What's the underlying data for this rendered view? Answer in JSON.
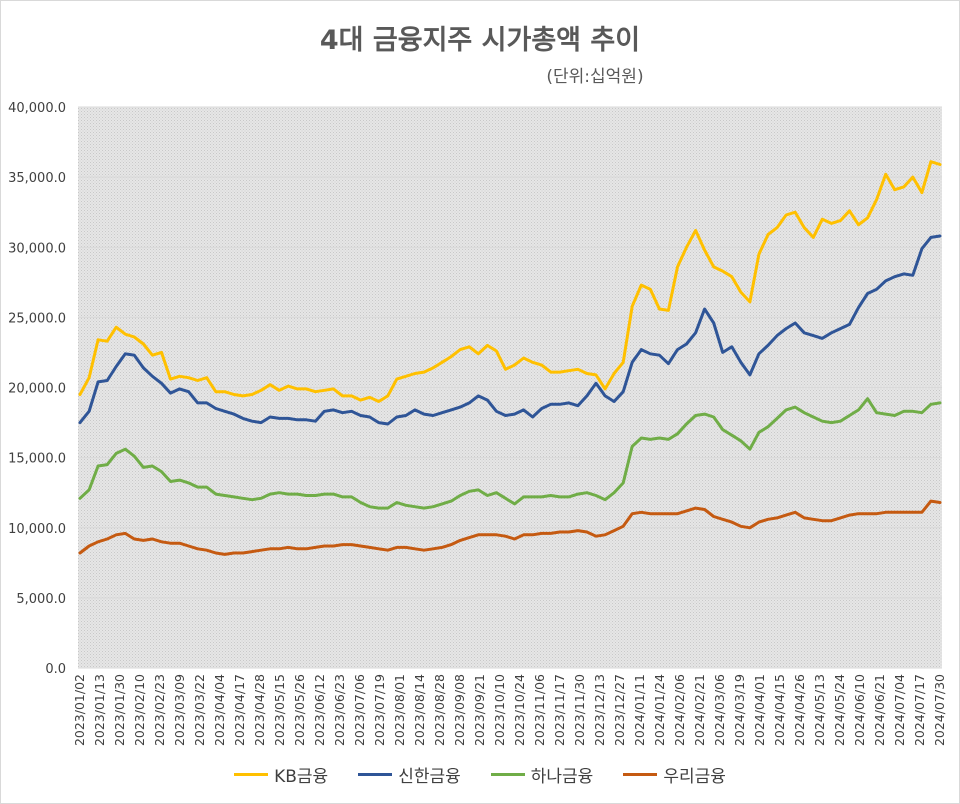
{
  "chart_data": {
    "type": "line",
    "title": "4대 금융지주 시가총액 추이",
    "unit_label": "(단위:십억원)",
    "xlabel": "",
    "ylabel": "",
    "ylim": [
      0,
      40000
    ],
    "yticks": [
      0,
      5000,
      10000,
      15000,
      20000,
      25000,
      30000,
      35000,
      40000
    ],
    "ytick_labels": [
      "0.0",
      "5,000.0",
      "10,000.0",
      "15,000.0",
      "20,000.0",
      "25,000.0",
      "30,000.0",
      "35,000.0",
      "40,000.0"
    ],
    "x_tick_labels": [
      "2023/01/02",
      "2023/01/13",
      "2023/01/30",
      "2023/02/10",
      "2023/02/23",
      "2023/03/09",
      "2023/03/22",
      "2023/04/04",
      "2023/04/17",
      "2023/04/28",
      "2023/05/15",
      "2023/05/26",
      "2023/06/12",
      "2023/06/23",
      "2023/07/06",
      "2023/07/19",
      "2023/08/01",
      "2023/08/14",
      "2023/08/28",
      "2023/09/08",
      "2023/09/21",
      "2023/10/10",
      "2023/10/24",
      "2023/11/06",
      "2023/11/17",
      "2023/11/30",
      "2023/12/13",
      "2023/12/27",
      "2024/01/11",
      "2024/01/24",
      "2024/02/06",
      "2024/02/21",
      "2024/03/06",
      "2024/03/19",
      "2024/04/01",
      "2024/04/15",
      "2024/04/26",
      "2024/05/13",
      "2024/05/24",
      "2024/06/10",
      "2024/06/21",
      "2024/07/04",
      "2024/07/17",
      "2024/07/30"
    ],
    "legend_position": "bottom",
    "series": [
      {
        "name": "KB금융",
        "color": "#ffc000",
        "values": [
          19500,
          20700,
          23400,
          23300,
          24300,
          23800,
          23600,
          23100,
          22300,
          22500,
          20600,
          20800,
          20700,
          20500,
          20700,
          19700,
          19700,
          19500,
          19400,
          19500,
          19800,
          20200,
          19800,
          20100,
          19900,
          19900,
          19700,
          19800,
          19900,
          19400,
          19400,
          19100,
          19300,
          19000,
          19400,
          20600,
          20800,
          21000,
          21100,
          21400,
          21800,
          22200,
          22700,
          22900,
          22400,
          23000,
          22600,
          21300,
          21600,
          22100,
          21800,
          21600,
          21100,
          21100,
          21200,
          21300,
          21000,
          20900,
          19900,
          21000,
          21800,
          25800,
          27300,
          27000,
          25600,
          25500,
          28600,
          30000,
          31200,
          29800,
          28600,
          28300,
          27900,
          26800,
          26100,
          29500,
          30900,
          31400,
          32300,
          32500,
          31400,
          30700,
          32000,
          31700,
          31900,
          32600,
          31600,
          32100,
          33400,
          35200,
          34100,
          34300,
          35000,
          33900,
          36100,
          35900
        ]
      },
      {
        "name": "신한금융",
        "color": "#2f5597",
        "values": [
          17500,
          18300,
          20400,
          20500,
          21500,
          22400,
          22300,
          21400,
          20800,
          20300,
          19600,
          19900,
          19700,
          18900,
          18900,
          18500,
          18300,
          18100,
          17800,
          17600,
          17500,
          17900,
          17800,
          17800,
          17700,
          17700,
          17600,
          18300,
          18400,
          18200,
          18300,
          18000,
          17900,
          17500,
          17400,
          17900,
          18000,
          18400,
          18100,
          18000,
          18200,
          18400,
          18600,
          18900,
          19400,
          19100,
          18300,
          18000,
          18100,
          18400,
          17900,
          18500,
          18800,
          18800,
          18900,
          18700,
          19400,
          20300,
          19400,
          19000,
          19700,
          21800,
          22700,
          22400,
          22300,
          21700,
          22700,
          23100,
          23900,
          25600,
          24600,
          22500,
          22900,
          21800,
          20900,
          22400,
          23000,
          23700,
          24200,
          24600,
          23900,
          23700,
          23500,
          23900,
          24200,
          24500,
          25700,
          26700,
          27000,
          27600,
          27900,
          28100,
          28000,
          29900,
          30700,
          30800
        ]
      },
      {
        "name": "하나금융",
        "color": "#70ad47",
        "values": [
          12100,
          12700,
          14400,
          14500,
          15300,
          15600,
          15100,
          14300,
          14400,
          14000,
          13300,
          13400,
          13200,
          12900,
          12900,
          12400,
          12300,
          12200,
          12100,
          12000,
          12100,
          12400,
          12500,
          12400,
          12400,
          12300,
          12300,
          12400,
          12400,
          12200,
          12200,
          11800,
          11500,
          11400,
          11400,
          11800,
          11600,
          11500,
          11400,
          11500,
          11700,
          11900,
          12300,
          12600,
          12700,
          12300,
          12500,
          12100,
          11700,
          12200,
          12200,
          12200,
          12300,
          12200,
          12200,
          12400,
          12500,
          12300,
          12000,
          12500,
          13200,
          15800,
          16400,
          16300,
          16400,
          16300,
          16700,
          17400,
          18000,
          18100,
          17900,
          17000,
          16600,
          16200,
          15600,
          16800,
          17200,
          17800,
          18400,
          18600,
          18200,
          17900,
          17600,
          17500,
          17600,
          18000,
          18400,
          19200,
          18200,
          18100,
          18000,
          18300,
          18300,
          18200,
          18800,
          18900
        ]
      },
      {
        "name": "우리금융",
        "color": "#c55a11",
        "values": [
          8200,
          8700,
          9000,
          9200,
          9500,
          9600,
          9200,
          9100,
          9200,
          9000,
          8900,
          8900,
          8700,
          8500,
          8400,
          8200,
          8100,
          8200,
          8200,
          8300,
          8400,
          8500,
          8500,
          8600,
          8500,
          8500,
          8600,
          8700,
          8700,
          8800,
          8800,
          8700,
          8600,
          8500,
          8400,
          8600,
          8600,
          8500,
          8400,
          8500,
          8600,
          8800,
          9100,
          9300,
          9500,
          9500,
          9500,
          9400,
          9200,
          9500,
          9500,
          9600,
          9600,
          9700,
          9700,
          9800,
          9700,
          9400,
          9500,
          9800,
          10100,
          11000,
          11100,
          11000,
          11000,
          11000,
          11000,
          11200,
          11400,
          11300,
          10800,
          10600,
          10400,
          10100,
          10000,
          10400,
          10600,
          10700,
          10900,
          11100,
          10700,
          10600,
          10500,
          10500,
          10700,
          10900,
          11000,
          11000,
          11000,
          11100,
          11100,
          11100,
          11100,
          11100,
          11900,
          11800
        ]
      }
    ]
  }
}
